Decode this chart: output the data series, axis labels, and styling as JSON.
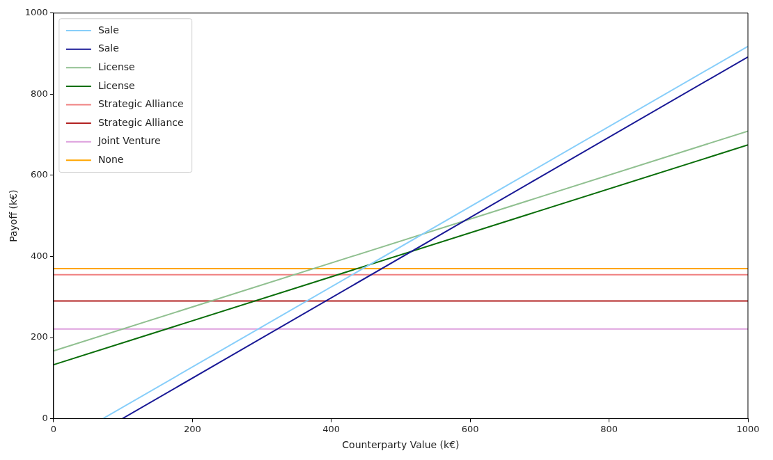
{
  "chart_data": {
    "type": "line",
    "xlabel": "Counterparty Value (k€)",
    "ylabel": "Payoff (k€)",
    "xlim": [
      0,
      1000
    ],
    "ylim": [
      0,
      1000
    ],
    "xticks": [
      0,
      200,
      400,
      600,
      800,
      1000
    ],
    "yticks": [
      0,
      200,
      400,
      600,
      800,
      1000
    ],
    "grid": false,
    "legend": "top left",
    "marker": "none",
    "line_style": "solid",
    "series": [
      {
        "name": "Sale",
        "color": "#87cefa",
        "x": [
          71,
          1000
        ],
        "values": [
          0,
          918
        ]
      },
      {
        "name": "Sale",
        "color": "#191996",
        "x": [
          99,
          1000
        ],
        "values": [
          0,
          892
        ]
      },
      {
        "name": "License",
        "color": "#90c090",
        "x": [
          0,
          1000
        ],
        "values": [
          167,
          709
        ]
      },
      {
        "name": "License",
        "color": "#0a6e0a",
        "x": [
          0,
          1000
        ],
        "values": [
          133,
          675
        ]
      },
      {
        "name": "Strategic Alliance",
        "color": "#f08080",
        "x": [
          0,
          1000
        ],
        "values": [
          355,
          355
        ]
      },
      {
        "name": "Strategic Alliance",
        "color": "#b22222",
        "x": [
          0,
          1000
        ],
        "values": [
          290,
          290
        ]
      },
      {
        "name": "Joint Venture",
        "color": "#dda0dd",
        "x": [
          0,
          1000
        ],
        "values": [
          221,
          221
        ]
      },
      {
        "name": "None",
        "color": "#ffa500",
        "x": [
          0,
          1000
        ],
        "values": [
          370,
          370
        ]
      }
    ]
  }
}
